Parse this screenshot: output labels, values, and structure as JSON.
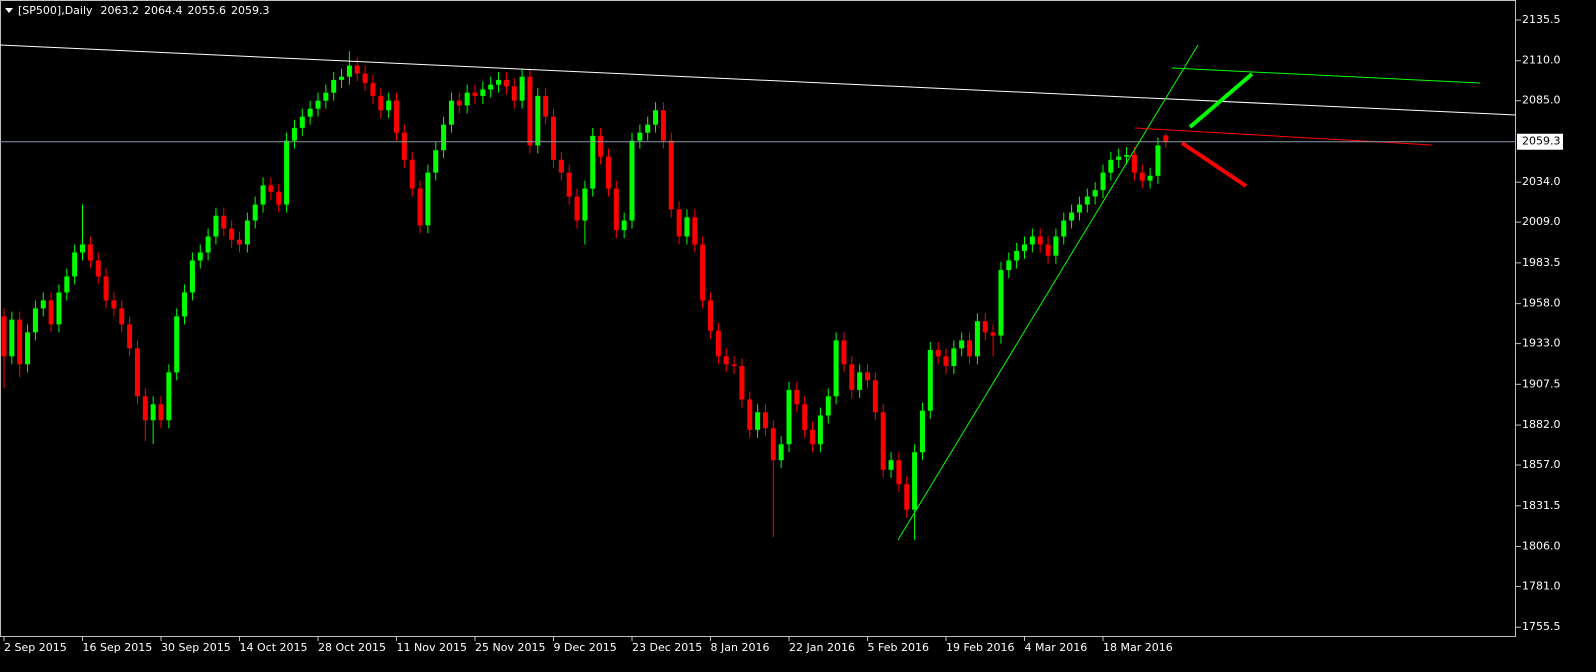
{
  "chart_data": {
    "type": "candlestick",
    "title": "[SP500],Daily",
    "categories": [
      "2 Sep 2015",
      null,
      null,
      null,
      null,
      null,
      null,
      null,
      null,
      null,
      "16 Sep 2015",
      null,
      null,
      null,
      null,
      null,
      null,
      null,
      null,
      null,
      "30 Sep 2015",
      null,
      null,
      null,
      null,
      null,
      null,
      null,
      null,
      null,
      "14 Oct 2015",
      null,
      null,
      null,
      null,
      null,
      null,
      null,
      null,
      null,
      "28 Oct 2015",
      null,
      null,
      null,
      null,
      null,
      null,
      null,
      null,
      null,
      "11 Nov 2015",
      null,
      null,
      null,
      null,
      null,
      null,
      null,
      null,
      null,
      "25 Nov 2015",
      null,
      null,
      null,
      null,
      null,
      null,
      null,
      null,
      null,
      "9 Dec 2015",
      null,
      null,
      null,
      null,
      null,
      null,
      null,
      null,
      null,
      "23 Dec 2015",
      null,
      null,
      null,
      null,
      null,
      null,
      null,
      null,
      null,
      "8 Jan 2016",
      null,
      null,
      null,
      null,
      null,
      null,
      null,
      null,
      null,
      "22 Jan 2016",
      null,
      null,
      null,
      null,
      null,
      null,
      null,
      null,
      null,
      "5 Feb 2016",
      null,
      null,
      null,
      null,
      null,
      null,
      null,
      null,
      null,
      "19 Feb 2016",
      null,
      null,
      null,
      null,
      null,
      null,
      null,
      null,
      null,
      "4 Mar 2016",
      null,
      null,
      null,
      null,
      null,
      null,
      null,
      null,
      null,
      "18 Mar 2016",
      null,
      null,
      null,
      null,
      null,
      null,
      null,
      null
    ],
    "open": [
      1950,
      1925,
      1948,
      1920,
      1940,
      1955,
      1960,
      1945,
      1965,
      1975,
      1990,
      1995,
      1985,
      1975,
      1960,
      1955,
      1945,
      1930,
      1900,
      1885,
      1895,
      1885,
      1915,
      1950,
      1965,
      1985,
      1990,
      2000,
      2013,
      2005,
      1998,
      1995,
      2010,
      2020,
      2032,
      2028,
      2020,
      2060,
      2068,
      2075,
      2080,
      2085,
      2090,
      2098,
      2100,
      2107,
      2102,
      2096,
      2088,
      2079,
      2085,
      2065,
      2048,
      2030,
      2007,
      2040,
      2054,
      2070,
      2085,
      2082,
      2090,
      2088,
      2092,
      2095,
      2098,
      2094,
      2085,
      2100,
      2057,
      2088,
      2075,
      2048,
      2040,
      2025,
      2010,
      2030,
      2063,
      2050,
      2030,
      2004,
      2010,
      2060,
      2065,
      2070,
      2079,
      2060,
      2017,
      2000,
      2012,
      1995,
      1960,
      1941,
      1925,
      1920,
      1919,
      1898,
      1879,
      1890,
      1880,
      1860,
      1870,
      1904,
      1895,
      1879,
      1870,
      1888,
      1900,
      1935,
      1920,
      1904,
      1915,
      1910,
      1890,
      1854,
      1860,
      1845,
      1829,
      1865,
      1891,
      1929,
      1925,
      1919,
      1930,
      1935,
      1925,
      1947,
      1940,
      1938,
      1979,
      1985,
      1991,
      1995,
      2000,
      1995,
      1988,
      2000,
      2010,
      2015,
      2020,
      2025,
      2029,
      2040,
      2048,
      2050,
      2051,
      2040,
      2035,
      2038,
      2063.2
    ],
    "high": [
      1955,
      1953,
      1953,
      1945,
      1960,
      1965,
      1965,
      1970,
      1980,
      1995,
      2020,
      2000,
      1990,
      1980,
      1965,
      1960,
      1950,
      1935,
      1905,
      1900,
      1900,
      1920,
      1955,
      1970,
      1990,
      1995,
      2005,
      2018,
      2018,
      2010,
      2003,
      2015,
      2025,
      2037,
      2037,
      2033,
      2065,
      2073,
      2080,
      2085,
      2090,
      2095,
      2103,
      2105,
      2116,
      2112,
      2107,
      2101,
      2093,
      2090,
      2090,
      2070,
      2053,
      2035,
      2045,
      2059,
      2075,
      2090,
      2090,
      2095,
      2095,
      2097,
      2100,
      2103,
      2103,
      2099,
      2105,
      2105,
      2093,
      2093,
      2080,
      2053,
      2045,
      2030,
      2035,
      2068,
      2068,
      2055,
      2035,
      2015,
      2065,
      2070,
      2075,
      2084,
      2084,
      2065,
      2022,
      2017,
      2017,
      2000,
      1965,
      1946,
      1930,
      1925,
      1924,
      1903,
      1895,
      1895,
      1885,
      1875,
      1909,
      1909,
      1900,
      1884,
      1893,
      1905,
      1940,
      1940,
      1925,
      1920,
      1920,
      1915,
      1895,
      1865,
      1865,
      1850,
      1870,
      1896,
      1934,
      1934,
      1930,
      1935,
      1940,
      1940,
      1952,
      1952,
      1945,
      1984,
      1990,
      1996,
      2000,
      2005,
      2005,
      2000,
      2005,
      2015,
      2020,
      2025,
      2030,
      2034,
      2045,
      2053,
      2055,
      2056,
      2056,
      2045,
      2043,
      2062,
      2064.4
    ],
    "low": [
      1905,
      1920,
      1912,
      1915,
      1935,
      1950,
      1940,
      1940,
      1960,
      1970,
      1985,
      1980,
      1970,
      1955,
      1950,
      1940,
      1925,
      1895,
      1872,
      1870,
      1880,
      1880,
      1910,
      1945,
      1960,
      1980,
      1985,
      1995,
      2000,
      1993,
      1990,
      1990,
      2005,
      2015,
      2023,
      2015,
      2015,
      2055,
      2063,
      2070,
      2075,
      2080,
      2085,
      2093,
      2095,
      2097,
      2091,
      2083,
      2074,
      2074,
      2060,
      2043,
      2025,
      2002,
      2002,
      2035,
      2049,
      2065,
      2077,
      2077,
      2083,
      2083,
      2087,
      2090,
      2089,
      2080,
      2080,
      2052,
      2052,
      2070,
      2043,
      2035,
      2020,
      2005,
      1995,
      2025,
      2045,
      2025,
      1999,
      1999,
      2005,
      2055,
      2060,
      2065,
      2055,
      2012,
      1995,
      1995,
      1990,
      1955,
      1936,
      1920,
      1915,
      1914,
      1893,
      1874,
      1874,
      1875,
      1812,
      1855,
      1865,
      1890,
      1874,
      1865,
      1865,
      1883,
      1895,
      1915,
      1899,
      1899,
      1905,
      1885,
      1849,
      1849,
      1840,
      1824,
      1810,
      1860,
      1886,
      1920,
      1914,
      1914,
      1925,
      1920,
      1920,
      1935,
      1925,
      1933,
      1974,
      1980,
      1986,
      1990,
      1990,
      1983,
      1983,
      1995,
      2005,
      2010,
      2015,
      2020,
      2024,
      2035,
      2043,
      2045,
      2035,
      2030,
      2030,
      2033,
      2055.6
    ],
    "close": [
      1925,
      1948,
      1920,
      1940,
      1955,
      1960,
      1945,
      1965,
      1975,
      1990,
      1995,
      1985,
      1975,
      1960,
      1955,
      1945,
      1930,
      1900,
      1885,
      1895,
      1885,
      1915,
      1950,
      1965,
      1985,
      1990,
      2000,
      2013,
      2005,
      1998,
      1995,
      2010,
      2020,
      2032,
      2028,
      2020,
      2060,
      2068,
      2075,
      2080,
      2085,
      2090,
      2098,
      2100,
      2107,
      2102,
      2096,
      2088,
      2079,
      2085,
      2065,
      2048,
      2030,
      2007,
      2040,
      2054,
      2070,
      2085,
      2082,
      2090,
      2088,
      2092,
      2095,
      2098,
      2094,
      2085,
      2100,
      2057,
      2088,
      2075,
      2048,
      2040,
      2025,
      2010,
      2030,
      2063,
      2050,
      2030,
      2004,
      2010,
      2060,
      2065,
      2070,
      2079,
      2060,
      2017,
      2000,
      2012,
      1995,
      1960,
      1941,
      1925,
      1920,
      1919,
      1898,
      1879,
      1890,
      1880,
      1860,
      1870,
      1904,
      1895,
      1879,
      1870,
      1888,
      1900,
      1935,
      1920,
      1904,
      1915,
      1910,
      1890,
      1854,
      1860,
      1845,
      1829,
      1865,
      1891,
      1929,
      1925,
      1919,
      1930,
      1935,
      1925,
      1947,
      1940,
      1938,
      1979,
      1985,
      1991,
      1995,
      2000,
      1995,
      1988,
      2000,
      2010,
      2015,
      2020,
      2025,
      2029,
      2040,
      2048,
      2050,
      2051,
      2040,
      2035,
      2038,
      2057,
      2059.3
    ],
    "up_color": "#00ff00",
    "down_color": "#ff0000",
    "ylim": [
      1750,
      2148
    ],
    "yticks": [
      2135.5,
      {
        "value": 2110,
        "label": "2110.0"
      },
      {
        "value": 2085,
        "label": "2085.0"
      },
      {
        "value": 2034,
        "label": "2034.0"
      },
      {
        "value": 2009,
        "label": "2009.0"
      },
      1983.5,
      {
        "value": 1958,
        "label": "1958.0"
      },
      {
        "value": 1933,
        "label": "1933.0"
      },
      1907.5,
      {
        "value": 1882,
        "label": "1882.0"
      },
      {
        "value": 1857,
        "label": "1857.0"
      },
      1831.5,
      {
        "value": 1806,
        "label": "1806.0"
      },
      {
        "value": 1781,
        "label": "1781.0"
      },
      1755.5
    ],
    "current_price": 2059.3
  }
}
